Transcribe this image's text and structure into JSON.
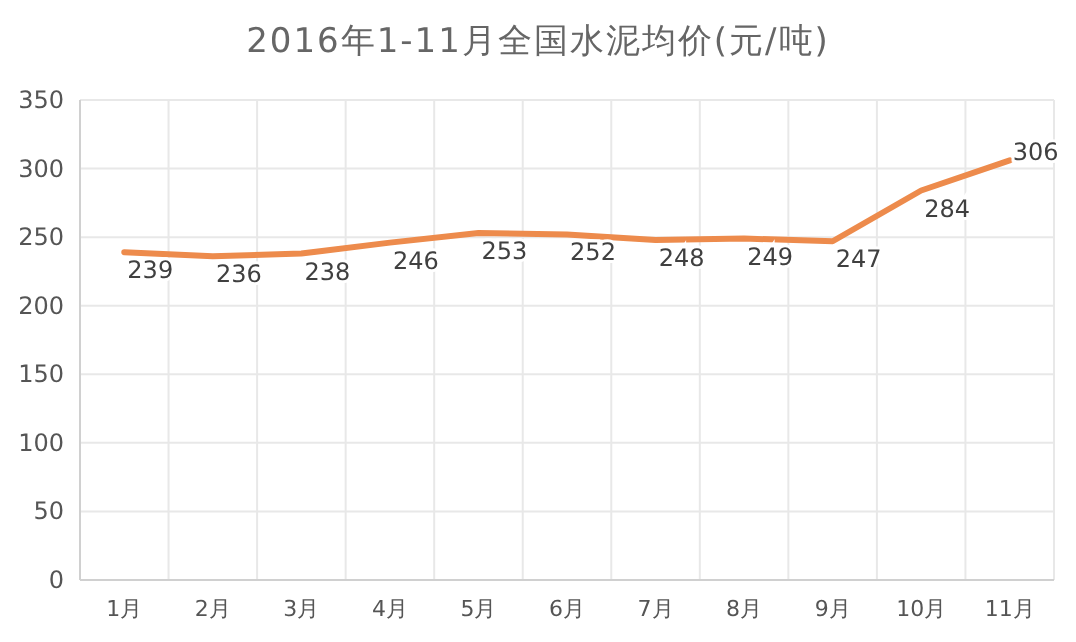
{
  "chart_data": {
    "type": "line",
    "title": "2016年1-11月全国水泥均价(元/吨)",
    "categories": [
      "1月",
      "2月",
      "3月",
      "4月",
      "5月",
      "6月",
      "7月",
      "8月",
      "9月",
      "10月",
      "11月"
    ],
    "series": [
      {
        "color": "#ed8b4c",
        "values": [
          239,
          236,
          238,
          246,
          253,
          252,
          248,
          249,
          247,
          284,
          306
        ]
      }
    ],
    "ylim": [
      0,
      350
    ],
    "yticks": [
      0,
      50,
      100,
      150,
      200,
      250,
      300,
      350
    ],
    "grid": true,
    "data_labels": true,
    "marker": "none",
    "line_style": "solid"
  }
}
